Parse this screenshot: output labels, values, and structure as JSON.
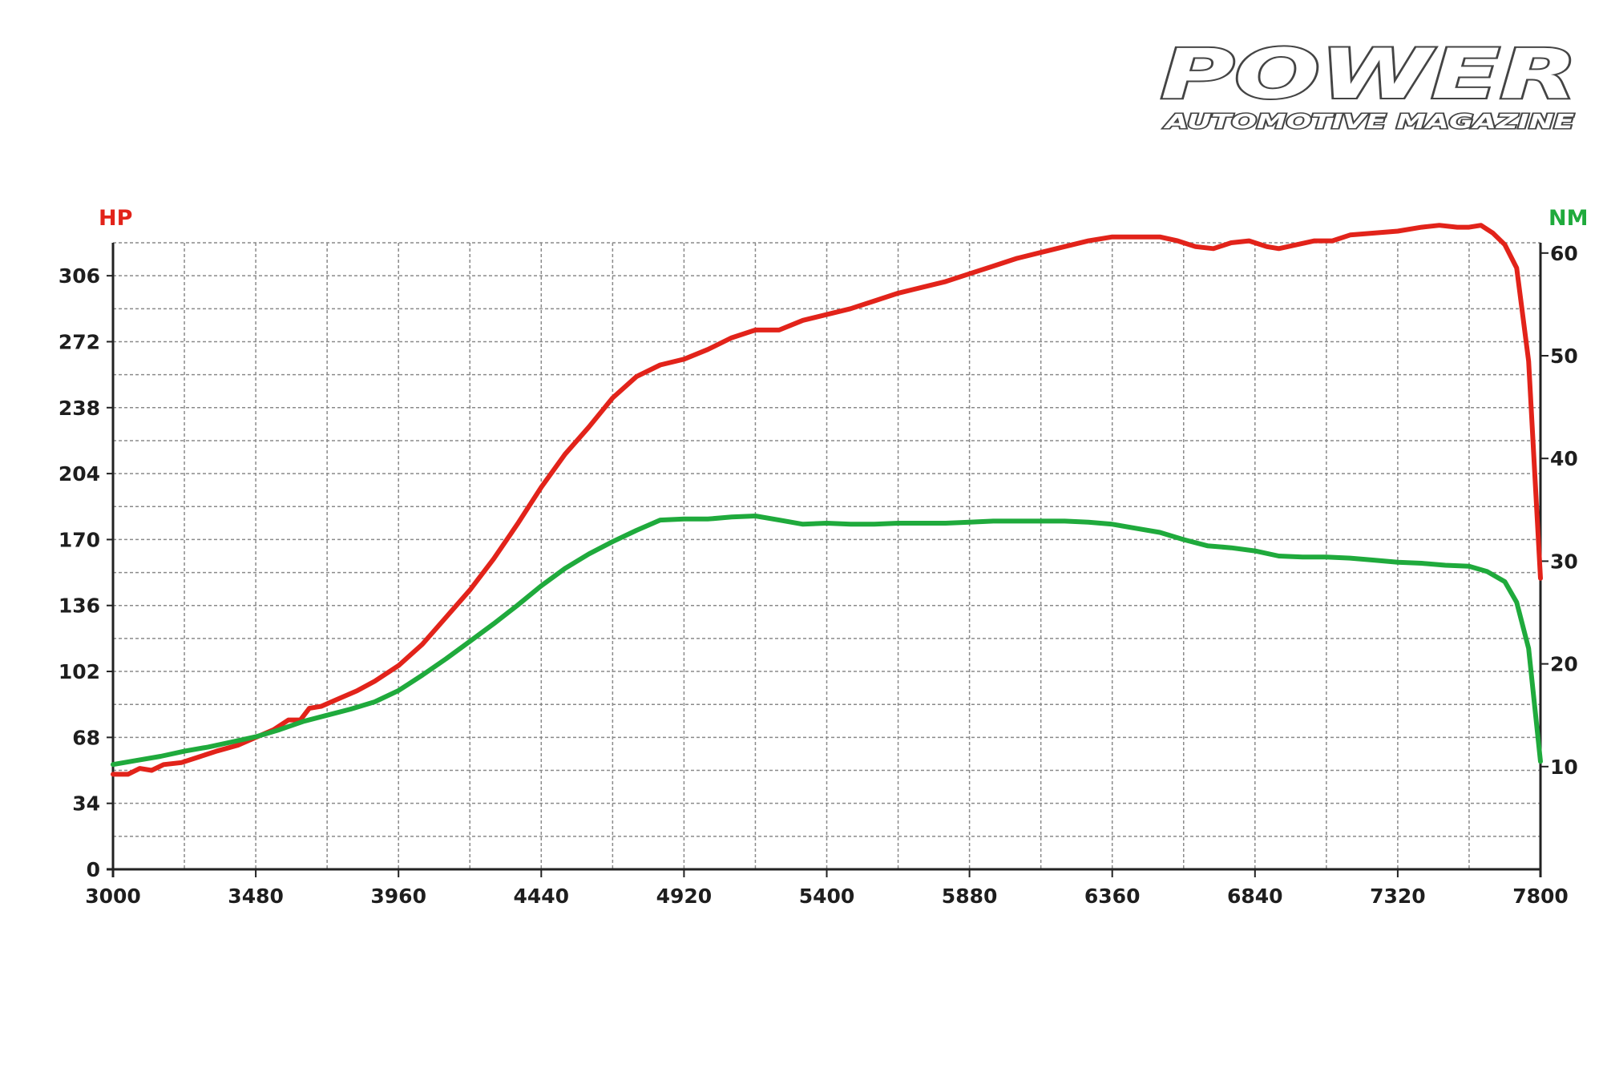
{
  "brand": {
    "name": "POWER",
    "tagline": "AUTOMOTIVE MAGAZINE"
  },
  "colors": {
    "hp": "#e2231a",
    "nm": "#1faa3c",
    "grid": "#8a8a8a",
    "axis": "#222222"
  },
  "chart_data": {
    "type": "line",
    "title": "",
    "xlabel": "",
    "ylabel": "HP",
    "y2label": "NM",
    "xlim": [
      3000,
      7800
    ],
    "ylim": [
      0,
      323
    ],
    "y2lim": [
      0,
      61
    ],
    "grid": true,
    "x_ticks": [
      3000,
      3480,
      3960,
      4440,
      4920,
      5400,
      5880,
      6360,
      6840,
      7320,
      7800
    ],
    "y_ticks": [
      0,
      34,
      68,
      102,
      136,
      170,
      204,
      238,
      272,
      306
    ],
    "y2_ticks": [
      10,
      20,
      30,
      40,
      50,
      60
    ],
    "series": [
      {
        "name": "HP",
        "axis": "left",
        "color": "#e2231a",
        "points": [
          [
            3000,
            49
          ],
          [
            3050,
            49
          ],
          [
            3090,
            52
          ],
          [
            3130,
            51
          ],
          [
            3170,
            54
          ],
          [
            3230,
            55
          ],
          [
            3290,
            58
          ],
          [
            3350,
            61
          ],
          [
            3420,
            64
          ],
          [
            3480,
            68
          ],
          [
            3540,
            72
          ],
          [
            3590,
            77
          ],
          [
            3630,
            77
          ],
          [
            3660,
            83
          ],
          [
            3700,
            84
          ],
          [
            3760,
            88
          ],
          [
            3820,
            92
          ],
          [
            3880,
            97
          ],
          [
            3960,
            105
          ],
          [
            4040,
            116
          ],
          [
            4120,
            130
          ],
          [
            4200,
            144
          ],
          [
            4280,
            160
          ],
          [
            4360,
            178
          ],
          [
            4440,
            197
          ],
          [
            4520,
            214
          ],
          [
            4600,
            228
          ],
          [
            4680,
            243
          ],
          [
            4760,
            254
          ],
          [
            4840,
            260
          ],
          [
            4920,
            263
          ],
          [
            5000,
            268
          ],
          [
            5080,
            274
          ],
          [
            5160,
            278
          ],
          [
            5240,
            278
          ],
          [
            5320,
            283
          ],
          [
            5400,
            286
          ],
          [
            5480,
            289
          ],
          [
            5560,
            293
          ],
          [
            5640,
            297
          ],
          [
            5720,
            300
          ],
          [
            5800,
            303
          ],
          [
            5880,
            307
          ],
          [
            5960,
            311
          ],
          [
            6040,
            315
          ],
          [
            6120,
            318
          ],
          [
            6200,
            321
          ],
          [
            6280,
            324
          ],
          [
            6360,
            326
          ],
          [
            6440,
            326
          ],
          [
            6520,
            326
          ],
          [
            6580,
            324
          ],
          [
            6640,
            321
          ],
          [
            6700,
            320
          ],
          [
            6760,
            323
          ],
          [
            6820,
            324
          ],
          [
            6880,
            321
          ],
          [
            6920,
            320
          ],
          [
            6980,
            322
          ],
          [
            7040,
            324
          ],
          [
            7100,
            324
          ],
          [
            7160,
            327
          ],
          [
            7240,
            328
          ],
          [
            7320,
            329
          ],
          [
            7400,
            331
          ],
          [
            7460,
            332
          ],
          [
            7520,
            331
          ],
          [
            7560,
            331
          ],
          [
            7600,
            332
          ],
          [
            7640,
            328
          ],
          [
            7680,
            322
          ],
          [
            7720,
            310
          ],
          [
            7760,
            262
          ],
          [
            7800,
            150
          ]
        ]
      },
      {
        "name": "NM",
        "axis": "right",
        "color": "#1faa3c",
        "points": [
          [
            3000,
            10.2
          ],
          [
            3080,
            10.6
          ],
          [
            3160,
            11.0
          ],
          [
            3240,
            11.5
          ],
          [
            3320,
            11.9
          ],
          [
            3400,
            12.4
          ],
          [
            3480,
            12.9
          ],
          [
            3560,
            13.6
          ],
          [
            3640,
            14.4
          ],
          [
            3720,
            15.0
          ],
          [
            3800,
            15.6
          ],
          [
            3880,
            16.3
          ],
          [
            3960,
            17.4
          ],
          [
            4040,
            18.9
          ],
          [
            4120,
            20.5
          ],
          [
            4200,
            22.2
          ],
          [
            4280,
            23.9
          ],
          [
            4360,
            25.7
          ],
          [
            4440,
            27.6
          ],
          [
            4520,
            29.3
          ],
          [
            4600,
            30.7
          ],
          [
            4680,
            31.9
          ],
          [
            4760,
            33.0
          ],
          [
            4840,
            34.0
          ],
          [
            4920,
            34.1
          ],
          [
            5000,
            34.1
          ],
          [
            5080,
            34.3
          ],
          [
            5160,
            34.4
          ],
          [
            5240,
            34.0
          ],
          [
            5320,
            33.6
          ],
          [
            5400,
            33.7
          ],
          [
            5480,
            33.6
          ],
          [
            5560,
            33.6
          ],
          [
            5640,
            33.7
          ],
          [
            5720,
            33.7
          ],
          [
            5800,
            33.7
          ],
          [
            5880,
            33.8
          ],
          [
            5960,
            33.9
          ],
          [
            6040,
            33.9
          ],
          [
            6120,
            33.9
          ],
          [
            6200,
            33.9
          ],
          [
            6280,
            33.8
          ],
          [
            6360,
            33.6
          ],
          [
            6440,
            33.2
          ],
          [
            6520,
            32.8
          ],
          [
            6600,
            32.1
          ],
          [
            6680,
            31.5
          ],
          [
            6760,
            31.3
          ],
          [
            6840,
            31.0
          ],
          [
            6920,
            30.5
          ],
          [
            7000,
            30.4
          ],
          [
            7080,
            30.4
          ],
          [
            7160,
            30.3
          ],
          [
            7240,
            30.1
          ],
          [
            7320,
            29.9
          ],
          [
            7400,
            29.8
          ],
          [
            7480,
            29.6
          ],
          [
            7560,
            29.5
          ],
          [
            7620,
            29.0
          ],
          [
            7680,
            28.0
          ],
          [
            7720,
            26.0
          ],
          [
            7760,
            21.5
          ],
          [
            7800,
            10.5
          ]
        ]
      }
    ]
  }
}
